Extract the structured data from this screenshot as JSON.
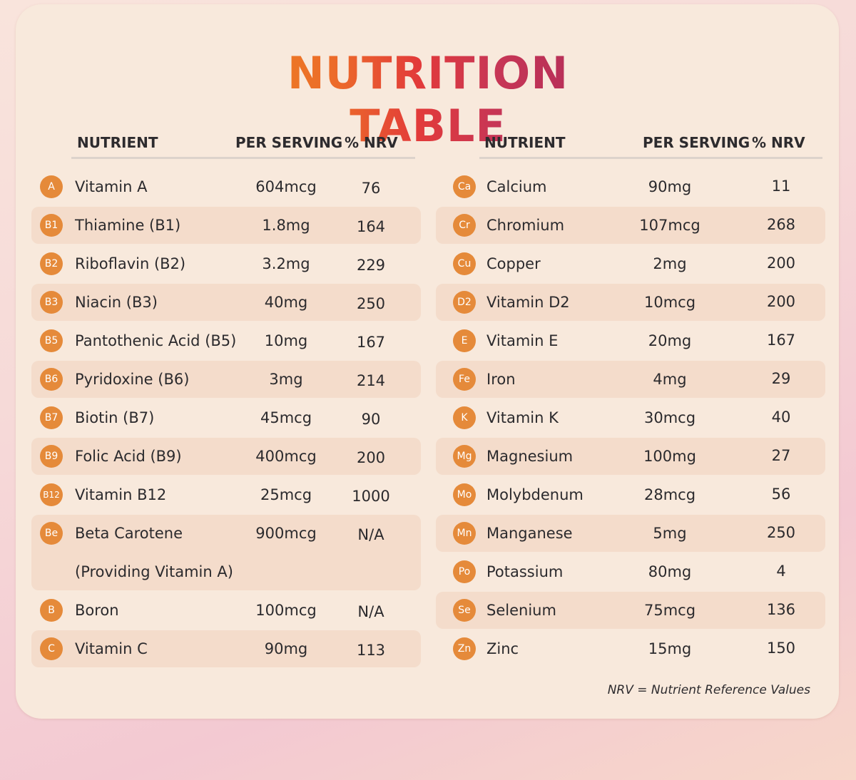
{
  "title": "NUTRITION TABLE",
  "headers": {
    "nutrient": "NUTRIENT",
    "per_serving": "PER SERVING",
    "nrv": "% NRV"
  },
  "left_rows": [
    {
      "badge": "A",
      "name": "Vitamin A",
      "amount": "604mcg",
      "nrv": "76"
    },
    {
      "badge": "B1",
      "name": "Thiamine (B1)",
      "amount": "1.8mg",
      "nrv": "164"
    },
    {
      "badge": "B2",
      "name": "Riboflavin (B2)",
      "amount": "3.2mg",
      "nrv": "229"
    },
    {
      "badge": "B3",
      "name": "Niacin (B3)",
      "amount": "40mg",
      "nrv": "250"
    },
    {
      "badge": "B5",
      "name": "Pantothenic Acid (B5)",
      "amount": "10mg",
      "nrv": "167"
    },
    {
      "badge": "B6",
      "name": "Pyridoxine (B6)",
      "amount": "3mg",
      "nrv": "214"
    },
    {
      "badge": "B7",
      "name": "Biotin (B7)",
      "amount": "45mcg",
      "nrv": "90"
    },
    {
      "badge": "B9",
      "name": "Folic Acid (B9)",
      "amount": "400mcg",
      "nrv": "200"
    },
    {
      "badge": "B12",
      "name": "Vitamin B12",
      "amount": "25mcg",
      "nrv": "1000"
    },
    {
      "badge": "Be",
      "name": "Beta Carotene",
      "name_line2": "(Providing Vitamin A)",
      "amount": "900mcg",
      "nrv": "N/A"
    },
    {
      "badge": "B",
      "name": "Boron",
      "amount": "100mcg",
      "nrv": "N/A"
    },
    {
      "badge": "C",
      "name": "Vitamin C",
      "amount": "90mg",
      "nrv": "113"
    }
  ],
  "right_rows": [
    {
      "badge": "Ca",
      "name": "Calcium",
      "amount": "90mg",
      "nrv": "11"
    },
    {
      "badge": "Cr",
      "name": "Chromium",
      "amount": "107mcg",
      "nrv": "268"
    },
    {
      "badge": "Cu",
      "name": "Copper",
      "amount": "2mg",
      "nrv": "200"
    },
    {
      "badge": "D2",
      "name": "Vitamin D2",
      "amount": "10mcg",
      "nrv": "200"
    },
    {
      "badge": "E",
      "name": "Vitamin E",
      "amount": "20mg",
      "nrv": "167"
    },
    {
      "badge": "Fe",
      "name": "Iron",
      "amount": "4mg",
      "nrv": "29"
    },
    {
      "badge": "K",
      "name": "Vitamin K",
      "amount": "30mcg",
      "nrv": "40"
    },
    {
      "badge": "Mg",
      "name": "Magnesium",
      "amount": "100mg",
      "nrv": "27"
    },
    {
      "badge": "Mo",
      "name": "Molybdenum",
      "amount": "28mcg",
      "nrv": "56"
    },
    {
      "badge": "Mn",
      "name": "Manganese",
      "amount": "5mg",
      "nrv": "250"
    },
    {
      "badge": "Po",
      "name": "Potassium",
      "amount": "80mg",
      "nrv": "4"
    },
    {
      "badge": "Se",
      "name": "Selenium",
      "amount": "75mcg",
      "nrv": "136"
    },
    {
      "badge": "Zn",
      "name": "Zinc",
      "amount": "15mg",
      "nrv": "150"
    }
  ],
  "footnote": "NRV = Nutrient Reference Values",
  "colors": {
    "badge": "#e58a3a",
    "row_shade": "#f4dccb",
    "card": "#f8e9dc"
  }
}
